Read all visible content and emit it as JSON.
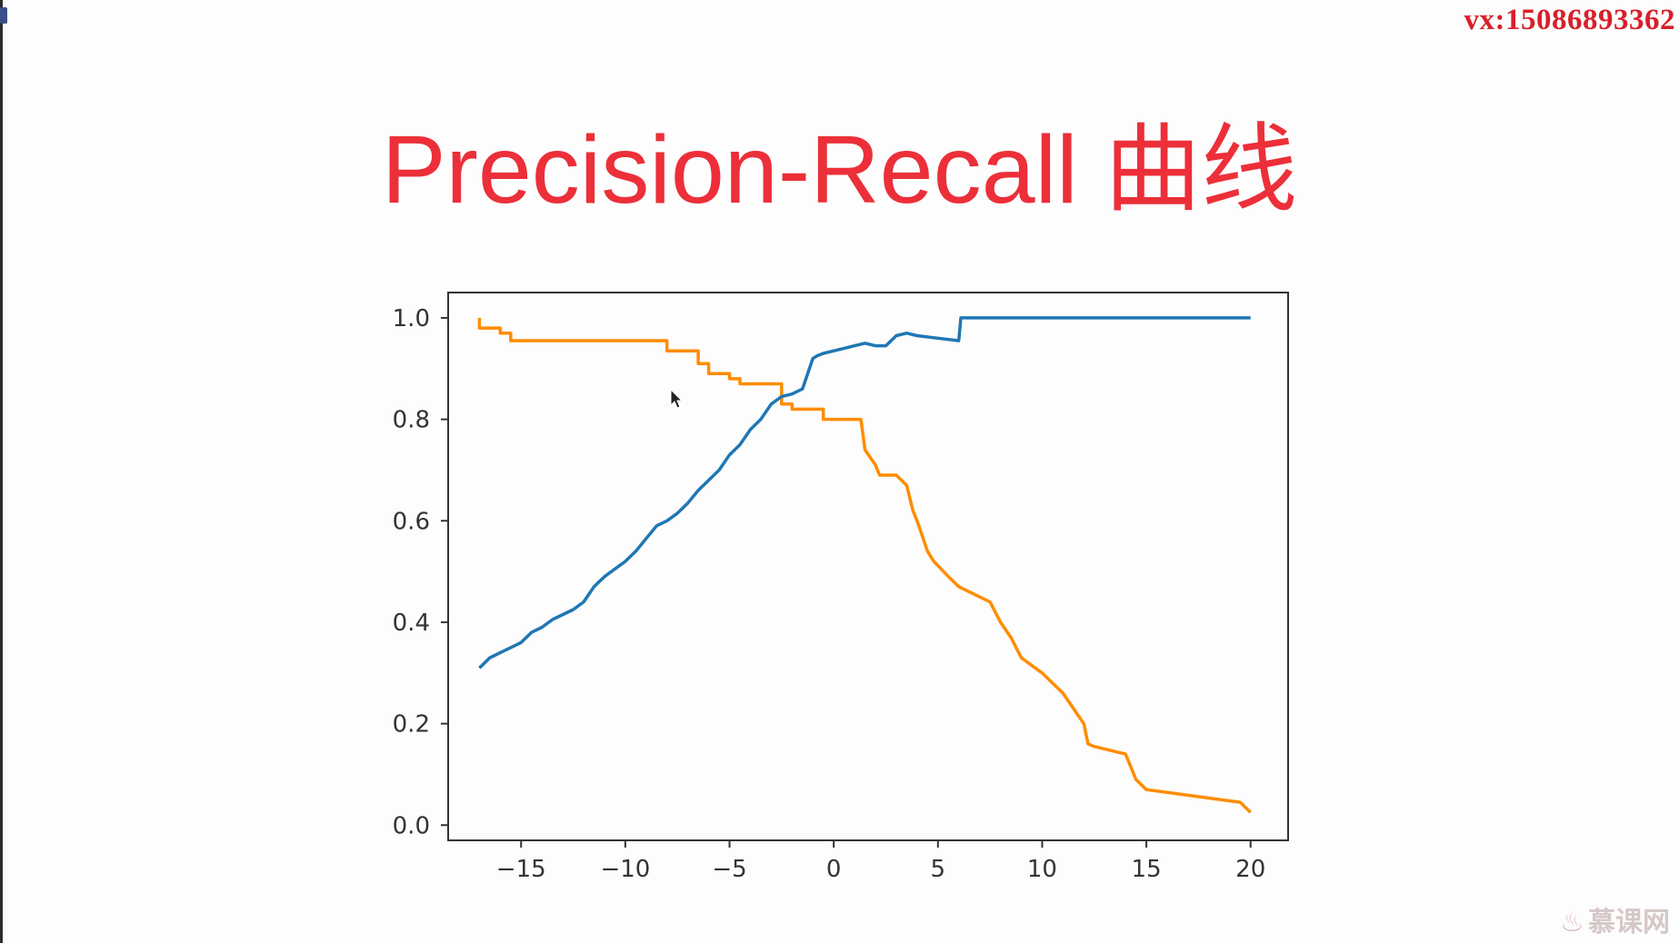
{
  "watermark": "vx:15086893362",
  "slide_title": "Precision-Recall 曲线",
  "brand": "慕课网",
  "chart_data": {
    "type": "line",
    "title": "",
    "xlabel": "",
    "ylabel": "",
    "xlim": [
      -18.5,
      21.8
    ],
    "ylim": [
      -0.03,
      1.05
    ],
    "grid": false,
    "x_ticks": [
      -15,
      -10,
      -5,
      0,
      5,
      10,
      15,
      20
    ],
    "x_tick_labels": [
      "−15",
      "−10",
      "−5",
      "0",
      "5",
      "10",
      "15",
      "20"
    ],
    "y_ticks": [
      0.0,
      0.2,
      0.4,
      0.6,
      0.8,
      1.0
    ],
    "y_tick_labels": [
      "0.0",
      "0.2",
      "0.4",
      "0.6",
      "0.8",
      "1.0"
    ],
    "series": [
      {
        "color": "#ff8c00",
        "style": "step",
        "x": [
          -17.0,
          -17.0,
          -16.0,
          -16.0,
          -15.5,
          -15.5,
          -8.0,
          -8.0,
          -6.5,
          -6.5,
          -6.0,
          -6.0,
          -5.0,
          -5.0,
          -4.5,
          -4.5,
          -2.5,
          -2.5,
          -2.0,
          -2.0,
          -0.5,
          -0.5,
          1.3,
          1.5,
          2.0,
          2.2,
          3.0,
          3.5,
          3.8,
          4.0,
          4.5,
          4.8,
          5.5,
          6.0,
          6.5,
          7.5,
          8.0,
          8.5,
          9.0,
          10.0,
          11.0,
          12.0,
          12.2,
          12.5,
          14.0,
          14.5,
          15.0,
          19.5,
          20.0
        ],
        "y": [
          1.0,
          0.98,
          0.98,
          0.97,
          0.97,
          0.955,
          0.955,
          0.935,
          0.935,
          0.91,
          0.91,
          0.89,
          0.89,
          0.88,
          0.88,
          0.87,
          0.87,
          0.83,
          0.83,
          0.82,
          0.82,
          0.8,
          0.8,
          0.74,
          0.71,
          0.69,
          0.69,
          0.67,
          0.62,
          0.6,
          0.54,
          0.52,
          0.49,
          0.47,
          0.46,
          0.44,
          0.4,
          0.37,
          0.33,
          0.3,
          0.26,
          0.2,
          0.16,
          0.155,
          0.14,
          0.09,
          0.07,
          0.045,
          0.025
        ]
      },
      {
        "color": "#1f77b4",
        "style": "line",
        "x": [
          -17.0,
          -16.5,
          -16.0,
          -15.0,
          -14.5,
          -14.0,
          -13.5,
          -13.0,
          -12.5,
          -12.0,
          -11.5,
          -11.0,
          -10.5,
          -10.0,
          -9.5,
          -9.0,
          -8.5,
          -8.0,
          -7.5,
          -7.0,
          -6.5,
          -6.0,
          -5.5,
          -5.0,
          -4.5,
          -4.0,
          -3.5,
          -3.0,
          -2.5,
          -2.0,
          -1.5,
          -1.0,
          -0.8,
          -0.5,
          0.0,
          0.5,
          1.0,
          1.5,
          2.0,
          2.5,
          3.0,
          3.5,
          4.0,
          5.0,
          6.0,
          6.1,
          7.0,
          20.0
        ],
        "y": [
          0.31,
          0.33,
          0.34,
          0.36,
          0.38,
          0.39,
          0.405,
          0.415,
          0.425,
          0.44,
          0.47,
          0.49,
          0.505,
          0.52,
          0.54,
          0.565,
          0.59,
          0.6,
          0.615,
          0.635,
          0.66,
          0.68,
          0.7,
          0.73,
          0.75,
          0.78,
          0.8,
          0.83,
          0.845,
          0.85,
          0.86,
          0.92,
          0.925,
          0.93,
          0.935,
          0.94,
          0.945,
          0.95,
          0.945,
          0.945,
          0.965,
          0.97,
          0.965,
          0.96,
          0.955,
          1.0,
          1.0,
          1.0
        ]
      }
    ]
  }
}
